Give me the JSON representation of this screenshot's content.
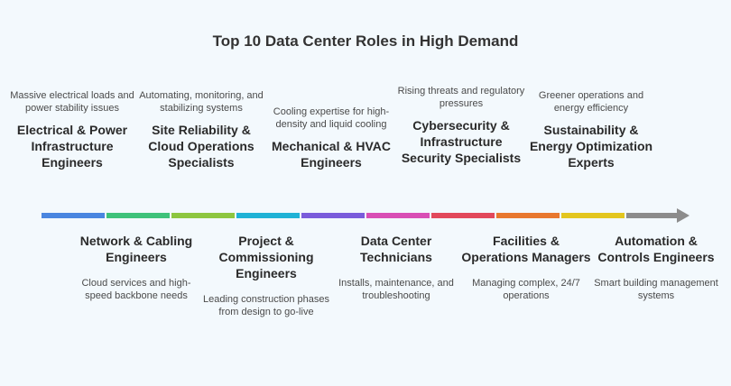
{
  "title": "Top 10 Data Center Roles in High Demand",
  "roles": [
    {
      "name": "Electrical & Power Infrastructure Engineers",
      "description": "Massive electrical loads and power stability issues",
      "color": "#4a86e0"
    },
    {
      "name": "Network & Cabling Engineers",
      "description": "Cloud services and high-speed backbone needs",
      "color": "#3ec27a"
    },
    {
      "name": "Site Reliability & Cloud Operations Specialists",
      "description": "Automating, monitoring, and stabilizing systems",
      "color": "#8dc63f"
    },
    {
      "name": "Project & Commissioning Engineers",
      "description": "Leading construction phases from design to go-live",
      "color": "#1fb2d6"
    },
    {
      "name": "Mechanical & HVAC Engineers",
      "description": "Cooling expertise for high-density and liquid cooling",
      "color": "#7a5cdb"
    },
    {
      "name": "Data Center Technicians",
      "description": "Installs, maintenance, and troubleshooting",
      "color": "#d94fb5"
    },
    {
      "name": "Cybersecurity & Infrastructure Security Specialists",
      "description": "Rising threats and regulatory pressures",
      "color": "#e2495b"
    },
    {
      "name": "Facilities & Operations Managers",
      "description": "Managing complex, 24/7 operations",
      "color": "#e8782e"
    },
    {
      "name": "Sustainability & Energy Optimization Experts",
      "description": "Greener operations and energy efficiency",
      "color": "#e3c61e"
    },
    {
      "name": "Automation & Controls Engineers",
      "description": "Smart building management systems",
      "color": "#8c8c8c"
    }
  ]
}
